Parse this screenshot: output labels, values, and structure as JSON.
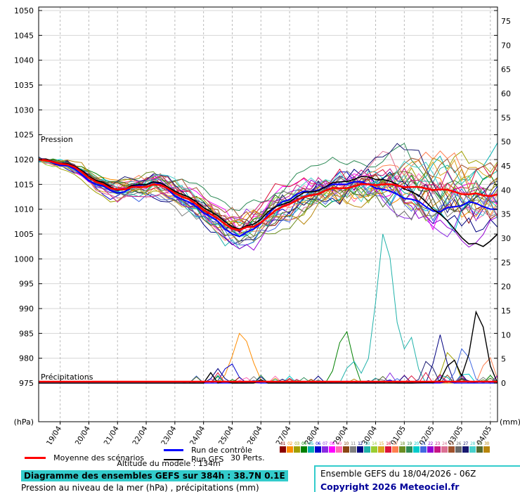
{
  "chart_data": {
    "type": "line",
    "subtype": "ensemble-spaghetti",
    "title": "Diagramme des ensembles GEFS sur 384h : 38.7N 0.1E",
    "pressure_axis": {
      "label": "(hPa)",
      "range": [
        975,
        1050
      ],
      "ticks": [
        1050,
        1045,
        1040,
        1035,
        1030,
        1025,
        1020,
        1015,
        1010,
        1005,
        1000,
        995,
        990,
        985,
        980,
        975
      ]
    },
    "precip_axis": {
      "label": "(mm)",
      "range": [
        0,
        75
      ],
      "ticks": [
        75,
        70,
        65,
        60,
        55,
        50,
        45,
        40,
        35,
        30,
        25,
        20,
        15,
        10,
        5,
        0
      ]
    },
    "x_axis": {
      "dates": [
        "19/04",
        "20/04",
        "21/04",
        "22/04",
        "23/04",
        "24/04",
        "25/04",
        "26/04",
        "27/04",
        "28/04",
        "29/04",
        "30/04",
        "01/05",
        "02/05",
        "03/05",
        "04/05"
      ],
      "hours_span": 384,
      "first_tick_hour": 18,
      "tick_interval_hours": 24
    },
    "annotations": {
      "pressure_label": "Pression",
      "precip_label": "Précipitations"
    },
    "series": {
      "hours_step": 12,
      "members": 30,
      "mean_color": "#ff0000",
      "control_color": "#0000ff",
      "gfs_color": "#000000",
      "mean_pressure": [
        1020.0,
        1019.5,
        1019.0,
        1017.5,
        1015.5,
        1014.2,
        1014.0,
        1014.5,
        1015.0,
        1014.2,
        1012.5,
        1011.0,
        1009.0,
        1007.0,
        1005.8,
        1006.5,
        1008.5,
        1010.5,
        1011.8,
        1012.8,
        1013.8,
        1014.2,
        1014.6,
        1015.0,
        1015.0,
        1014.8,
        1014.5,
        1014.2,
        1014.0,
        1013.5,
        1013.0,
        1012.8,
        1013.0
      ],
      "control_pressure": [
        1020.0,
        1019.3,
        1018.8,
        1017.0,
        1015.0,
        1013.8,
        1013.5,
        1014.8,
        1015.5,
        1014.0,
        1012.0,
        1010.5,
        1008.5,
        1006.0,
        1004.5,
        1006.0,
        1009.0,
        1011.5,
        1013.0,
        1013.5,
        1014.5,
        1015.0,
        1015.5,
        1015.0,
        1014.0,
        1013.0,
        1012.0,
        1010.5,
        1009.5,
        1010.5,
        1011.5,
        1010.5,
        1010.0
      ],
      "gfs_pressure": [
        1020.0,
        1019.6,
        1019.2,
        1017.8,
        1015.8,
        1014.5,
        1014.0,
        1015.0,
        1015.5,
        1014.5,
        1013.0,
        1011.5,
        1009.5,
        1007.5,
        1006.0,
        1007.0,
        1009.5,
        1011.0,
        1012.5,
        1013.5,
        1014.5,
        1015.5,
        1016.0,
        1016.5,
        1016.0,
        1015.0,
        1013.5,
        1011.5,
        1009.0,
        1006.0,
        1003.0,
        1002.5,
        1005.0
      ],
      "ensemble_spread": [
        0.5,
        0.8,
        1.2,
        1.6,
        2.0,
        2.4,
        2.8,
        3.0,
        3.2,
        3.4,
        3.6,
        3.8,
        4.0,
        4.2,
        4.6,
        5.0,
        5.0,
        5.0,
        5.0,
        5.2,
        5.5,
        6.0,
        6.5,
        7.0,
        7.5,
        8.0,
        8.0,
        8.5,
        9.0,
        9.0,
        9.5,
        9.5,
        9.5
      ],
      "mean_precip_baseline": 0.3,
      "member_colors": [
        "#8b0000",
        "#ff8c00",
        "#a0a000",
        "#008000",
        "#00b0b0",
        "#0000cd",
        "#8a2be2",
        "#ff00ff",
        "#ff69b4",
        "#8b4513",
        "#808080",
        "#000080",
        "#20b2aa",
        "#9acd32",
        "#daa520",
        "#dc143c",
        "#ff7f50",
        "#6b8e23",
        "#2e8b57",
        "#00cccc",
        "#4169e1",
        "#9400d3",
        "#c71585",
        "#db7093",
        "#a0522d",
        "#696969",
        "#191970",
        "#48d1cc",
        "#556b2f",
        "#b8860b"
      ],
      "precip_spikes": [
        {
          "series": 2,
          "t": 170,
          "peak": 12,
          "width": 18
        },
        {
          "series": 6,
          "t": 160,
          "peak": 5,
          "width": 12
        },
        {
          "series": 12,
          "t": 150,
          "peak": 3,
          "width": 10
        },
        {
          "series": 4,
          "t": 256,
          "peak": 13,
          "width": 14
        },
        {
          "series": 13,
          "t": 262,
          "peak": 6,
          "width": 10
        },
        {
          "series": 13,
          "t": 290,
          "peak": 36,
          "width": 18
        },
        {
          "series": 13,
          "t": 310,
          "peak": 12,
          "width": 12
        },
        {
          "series": 27,
          "t": 326,
          "peak": 6,
          "width": 10
        },
        {
          "series": 12,
          "t": 336,
          "peak": 10,
          "width": 12
        },
        {
          "series": 3,
          "t": 344,
          "peak": 8,
          "width": 12
        },
        {
          "series": "gfs",
          "t": 346,
          "peak": 6,
          "width": 12
        },
        {
          "series": 21,
          "t": 356,
          "peak": 9,
          "width": 12
        },
        {
          "series": "gfs",
          "t": 368,
          "peak": 18,
          "width": 14
        },
        {
          "series": 17,
          "t": 376,
          "peak": 7,
          "width": 10
        }
      ]
    }
  },
  "legend": {
    "mean": "Moyenne des scénarios",
    "control": "Run de contrôle",
    "gfs": "Run GFS",
    "perts": "30 Perts."
  },
  "footer": {
    "altitude": "Altitude du modele : 134m",
    "title": "Diagramme des ensembles GEFS sur 384h : 38.7N 0.1E",
    "subtitle": "Pression au niveau de la mer (hPa) , précipitations (mm)",
    "run_info": "Ensemble GEFS du 18/04/2026 - 06Z",
    "copyright": "Copyright 2026 Meteociel.fr",
    "accent_color": "#33cccc"
  }
}
